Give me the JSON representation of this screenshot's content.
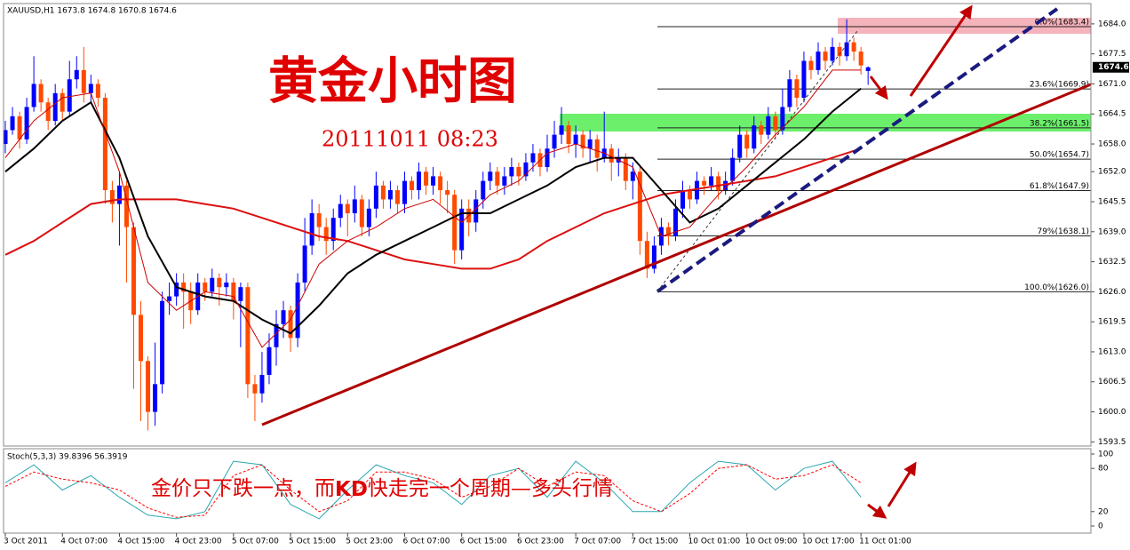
{
  "chart_data": [
    {
      "type": "candlestick",
      "header": "XAUUSD,H1  1673.8 1674.8 1670.8 1674.6",
      "title": "黄金小时图",
      "subtitle": "20111011 08:23",
      "up_color": "#0000ff",
      "down_color": "#ff4a00",
      "xlim": [
        -0.25,
        152.25
      ],
      "ylim": [
        1592.6,
        1688.4
      ],
      "yticks": [
        {
          "value": 1684,
          "label": "1684.0"
        },
        1677.5,
        {
          "value": 1671,
          "label": "1671.0"
        },
        1664.5,
        {
          "value": 1658,
          "label": "1658.0"
        },
        {
          "value": 1652,
          "label": "1652.0"
        },
        1645.5,
        {
          "value": 1639,
          "label": "1639.0"
        },
        1632.5,
        {
          "value": 1626,
          "label": "1626.0"
        },
        1619.5,
        {
          "value": 1613,
          "label": "1613.0"
        },
        1606.5,
        {
          "value": 1600,
          "label": "1600.0"
        },
        1593.5
      ],
      "xticks": [
        {
          "value": 0,
          "label": "3 Oct 2011"
        },
        {
          "value": 8,
          "label": "4 Oct 07:00"
        },
        {
          "value": 16,
          "label": "4 Oct 15:00"
        },
        {
          "value": 24,
          "label": "4 Oct 23:00"
        },
        {
          "value": 32,
          "label": "5 Oct 07:00"
        },
        {
          "value": 40,
          "label": "5 Oct 15:00"
        },
        {
          "value": 48,
          "label": "5 Oct 23:00"
        },
        {
          "value": 56,
          "label": "6 Oct 07:00"
        },
        {
          "value": 64,
          "label": "6 Oct 15:00"
        },
        {
          "value": 72,
          "label": "6 Oct 23:00"
        },
        {
          "value": 80,
          "label": "7 Oct 07:00"
        },
        {
          "value": 88,
          "label": "7 Oct 15:00"
        },
        {
          "value": 96,
          "label": "10 Oct 01:00"
        },
        {
          "value": 104,
          "label": "10 Oct 09:00"
        },
        {
          "value": 112,
          "label": "10 Oct 17:00"
        },
        {
          "value": 120,
          "label": "11 Oct 01:00"
        }
      ],
      "current_price": 1674.6,
      "open": [
        1658,
        1661,
        1664,
        1659,
        1666,
        1671,
        1667,
        1663,
        1669,
        1665,
        1672,
        1674,
        1669,
        1671,
        1668,
        1648,
        1645,
        1649,
        1640,
        1621,
        1611,
        1600,
        1606,
        1624,
        1625,
        1628,
        1626,
        1622,
        1628,
        1626,
        1629,
        1627,
        1628,
        1624,
        1627,
        1606,
        1604,
        1608,
        1614,
        1619,
        1622,
        1616,
        1628,
        1636,
        1643,
        1640,
        1637,
        1642,
        1645,
        1643,
        1646,
        1640,
        1644,
        1649,
        1646,
        1648,
        1645,
        1650,
        1648,
        1652,
        1649,
        1651,
        1648,
        1647,
        1635,
        1644,
        1641,
        1646,
        1650,
        1652,
        1649,
        1651,
        1653,
        1651,
        1654,
        1656,
        1653,
        1657,
        1660,
        1662,
        1658,
        1660,
        1657,
        1659,
        1655,
        1657,
        1654,
        1655,
        1650,
        1652,
        1637,
        1631,
        1636,
        1640,
        1638,
        1644,
        1648,
        1646,
        1650,
        1649,
        1651,
        1648,
        1650,
        1655,
        1660,
        1657,
        1662,
        1660,
        1664,
        1661,
        1666,
        1672,
        1668,
        1676,
        1674,
        1678,
        1676,
        1679,
        1677,
        1680,
        1678,
        1673.8
      ],
      "high": [
        1663,
        1666,
        1665,
        1668,
        1677,
        1672,
        1668,
        1671,
        1670,
        1676,
        1677,
        1679,
        1673,
        1672,
        1669,
        1650,
        1652,
        1650,
        1641,
        1624,
        1612,
        1615,
        1626,
        1628,
        1630,
        1630,
        1628,
        1630,
        1629,
        1631,
        1630,
        1630,
        1629,
        1628,
        1628,
        1608,
        1613,
        1617,
        1622,
        1624,
        1623,
        1630,
        1642,
        1646,
        1645,
        1642,
        1644,
        1647,
        1646,
        1649,
        1647,
        1646,
        1652,
        1650,
        1650,
        1649,
        1652,
        1651,
        1654,
        1653,
        1653,
        1652,
        1650,
        1648,
        1646,
        1646,
        1648,
        1652,
        1654,
        1653,
        1653,
        1655,
        1654,
        1656,
        1658,
        1657,
        1660,
        1663,
        1666,
        1663,
        1662,
        1661,
        1661,
        1660,
        1665,
        1658,
        1657,
        1656,
        1654,
        1653,
        1639,
        1638,
        1642,
        1641,
        1646,
        1650,
        1649,
        1652,
        1651,
        1653,
        1652,
        1652,
        1657,
        1662,
        1661,
        1664,
        1663,
        1666,
        1665,
        1670,
        1674,
        1673,
        1678,
        1677,
        1680,
        1679,
        1681,
        1680,
        1685,
        1681,
        1679,
        1674.8
      ],
      "low": [
        1656,
        1660,
        1657,
        1658,
        1665,
        1665,
        1661,
        1662,
        1663,
        1664,
        1670,
        1667,
        1667,
        1666,
        1645,
        1641,
        1636,
        1628,
        1605,
        1598,
        1596,
        1597,
        1604,
        1621,
        1623,
        1618,
        1619,
        1621,
        1624,
        1625,
        1623,
        1625,
        1620,
        1614,
        1603,
        1598,
        1602,
        1606,
        1610,
        1616,
        1613,
        1614,
        1626,
        1634,
        1637,
        1634,
        1635,
        1640,
        1638,
        1641,
        1638,
        1638,
        1642,
        1644,
        1644,
        1643,
        1643,
        1646,
        1646,
        1647,
        1647,
        1645,
        1643,
        1632,
        1633,
        1638,
        1639,
        1644,
        1648,
        1647,
        1647,
        1649,
        1649,
        1650,
        1652,
        1651,
        1652,
        1655,
        1658,
        1656,
        1655,
        1655,
        1654,
        1652,
        1654,
        1650,
        1651,
        1648,
        1646,
        1634,
        1629,
        1630,
        1634,
        1636,
        1637,
        1642,
        1644,
        1645,
        1647,
        1648,
        1646,
        1647,
        1649,
        1654,
        1655,
        1656,
        1658,
        1659,
        1659,
        1660,
        1665,
        1666,
        1667,
        1672,
        1673,
        1674,
        1675,
        1675,
        1676,
        1676,
        1673,
        1670.8
      ],
      "close": [
        1661,
        1664,
        1659,
        1666,
        1671,
        1667,
        1663,
        1669,
        1665,
        1672,
        1674,
        1669,
        1671,
        1668,
        1648,
        1645,
        1649,
        1640,
        1621,
        1611,
        1600,
        1606,
        1624,
        1625,
        1628,
        1626,
        1622,
        1628,
        1626,
        1629,
        1627,
        1628,
        1624,
        1627,
        1606,
        1604,
        1608,
        1614,
        1619,
        1622,
        1616,
        1628,
        1636,
        1643,
        1640,
        1637,
        1642,
        1645,
        1643,
        1646,
        1640,
        1644,
        1649,
        1646,
        1648,
        1645,
        1650,
        1648,
        1652,
        1649,
        1651,
        1648,
        1647,
        1635,
        1644,
        1641,
        1646,
        1650,
        1652,
        1649,
        1651,
        1653,
        1651,
        1654,
        1656,
        1653,
        1657,
        1660,
        1662,
        1658,
        1660,
        1657,
        1659,
        1655,
        1657,
        1654,
        1655,
        1650,
        1652,
        1637,
        1631,
        1636,
        1640,
        1638,
        1644,
        1648,
        1646,
        1650,
        1649,
        1651,
        1648,
        1650,
        1655,
        1660,
        1657,
        1662,
        1660,
        1664,
        1661,
        1666,
        1672,
        1668,
        1676,
        1674,
        1678,
        1676,
        1679,
        1677,
        1680,
        1678,
        1675,
        1674.6
      ],
      "lines": [
        {
          "color": "#dd1010",
          "width": 2,
          "x": [
            0,
            4,
            8,
            12,
            16,
            20,
            24,
            28,
            32,
            36,
            40,
            44,
            48,
            52,
            56,
            60,
            64,
            68,
            72,
            76,
            80,
            84,
            88,
            92,
            96,
            100,
            104,
            108,
            112,
            116,
            120
          ],
          "values": [
            1634,
            1637,
            1641,
            1645,
            1646,
            1646,
            1646,
            1645,
            1644,
            1642,
            1640,
            1638,
            1637,
            1635,
            1633,
            1632,
            1631,
            1631,
            1633,
            1637,
            1640,
            1643,
            1645,
            1647,
            1648,
            1649,
            1650,
            1651,
            1653,
            1655,
            1657
          ]
        },
        {
          "color": "#000000",
          "width": 2,
          "x": [
            0,
            4,
            8,
            12,
            16,
            20,
            24,
            28,
            32,
            36,
            40,
            44,
            48,
            52,
            56,
            60,
            64,
            68,
            72,
            76,
            80,
            84,
            88,
            92,
            96,
            100,
            104,
            108,
            112,
            116,
            120
          ],
          "values": [
            1652,
            1657,
            1663,
            1667,
            1655,
            1638,
            1627,
            1625,
            1624,
            1620,
            1617,
            1623,
            1630,
            1634,
            1637,
            1640,
            1643,
            1643,
            1646,
            1649,
            1653,
            1655,
            1655,
            1648,
            1641,
            1644,
            1649,
            1654,
            1659,
            1665,
            1670
          ]
        },
        {
          "color": "#cc0000",
          "width": 1,
          "x": [
            0,
            4,
            8,
            12,
            16,
            20,
            24,
            28,
            32,
            36,
            40,
            44,
            48,
            52,
            56,
            60,
            64,
            68,
            72,
            76,
            80,
            84,
            88,
            92,
            96,
            100,
            104,
            108,
            112,
            116,
            120
          ],
          "values": [
            1655,
            1663,
            1668,
            1669,
            1652,
            1628,
            1622,
            1626,
            1625,
            1614,
            1620,
            1632,
            1637,
            1640,
            1644,
            1646,
            1641,
            1647,
            1650,
            1656,
            1658,
            1656,
            1653,
            1638,
            1640,
            1647,
            1653,
            1660,
            1666,
            1674,
            1674
          ]
        }
      ],
      "fib_levels": [
        {
          "value": 1683.4,
          "label": "0.0%(1683.4)"
        },
        {
          "value": 1669.9,
          "label": "23.6%(1669.9)"
        },
        {
          "value": 1661.5,
          "label": "38.2%(1661.5)"
        },
        {
          "value": 1654.7,
          "label": "50.0%(1654.7)"
        },
        {
          "value": 1647.9,
          "label": "61.8%(1647.9)"
        },
        {
          "value": 1638.1,
          "label": "79%(1638.1)"
        },
        {
          "value": 1626,
          "label": "100.0%(1626.0)"
        }
      ]
    },
    {
      "type": "line",
      "header": "Stoch(5,3,3) 39.8396 56.3919",
      "annotation": [
        "金价只下跌一点，而",
        "KD",
        "快走完一个周期—多头行情"
      ],
      "xlim": [
        -0.25,
        152.25
      ],
      "ylim": [
        -9.9,
        107.4
      ],
      "yticks": [
        0,
        20,
        80,
        100
      ],
      "series": [
        {
          "color": "#2aa7b0",
          "dashed": false,
          "x": [
            0,
            4,
            8,
            12,
            16,
            20,
            24,
            28,
            32,
            36,
            40,
            44,
            48,
            52,
            56,
            60,
            64,
            68,
            72,
            76,
            80,
            84,
            88,
            92,
            96,
            100,
            104,
            108,
            112,
            116,
            120
          ],
          "values": [
            60,
            85,
            50,
            70,
            40,
            15,
            10,
            20,
            90,
            85,
            30,
            10,
            50,
            85,
            70,
            60,
            30,
            70,
            80,
            40,
            90,
            60,
            20,
            20,
            60,
            90,
            85,
            50,
            80,
            90,
            40
          ]
        },
        {
          "color": "#ff0000",
          "dashed": true,
          "x": [
            0,
            4,
            8,
            12,
            16,
            20,
            24,
            28,
            32,
            36,
            40,
            44,
            48,
            52,
            56,
            60,
            64,
            68,
            72,
            76,
            80,
            84,
            88,
            92,
            96,
            100,
            104,
            108,
            112,
            116,
            120
          ],
          "values": [
            55,
            75,
            65,
            60,
            50,
            25,
            12,
            15,
            70,
            85,
            50,
            20,
            35,
            75,
            75,
            65,
            40,
            55,
            80,
            55,
            75,
            70,
            35,
            20,
            45,
            80,
            85,
            65,
            70,
            85,
            60
          ]
        }
      ]
    }
  ]
}
